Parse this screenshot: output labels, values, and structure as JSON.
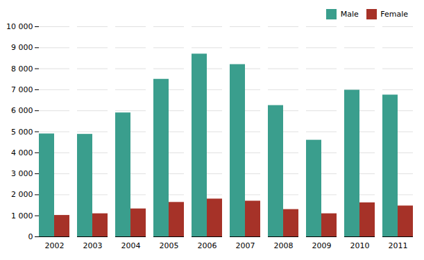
{
  "chart_data": {
    "type": "bar",
    "categories": [
      "2002",
      "2003",
      "2004",
      "2005",
      "2006",
      "2007",
      "2008",
      "2009",
      "2010",
      "2011"
    ],
    "series": [
      {
        "name": "Male",
        "color": "#3a9e8d",
        "values": [
          4900,
          4880,
          5900,
          7500,
          8700,
          8200,
          6250,
          4600,
          6980,
          6750
        ]
      },
      {
        "name": "Female",
        "color": "#a63228",
        "values": [
          1020,
          1100,
          1330,
          1640,
          1800,
          1700,
          1300,
          1100,
          1620,
          1470
        ]
      }
    ],
    "ylim": [
      0,
      10000
    ],
    "yticks": [
      0,
      {
        "value": 1000,
        "label": "1 000"
      },
      {
        "value": 2000,
        "label": "2 000"
      },
      {
        "value": 3000,
        "label": "3 000"
      },
      {
        "value": 4000,
        "label": "4 000"
      },
      {
        "value": 5000,
        "label": "5 000"
      },
      {
        "value": 6000,
        "label": "6 000"
      },
      {
        "value": 7000,
        "label": "7 000"
      },
      {
        "value": 8000,
        "label": "8 000"
      },
      {
        "value": 9000,
        "label": "9 000"
      },
      {
        "value": 10000,
        "label": "10 000"
      }
    ],
    "grid": true,
    "legend": "upper right"
  }
}
